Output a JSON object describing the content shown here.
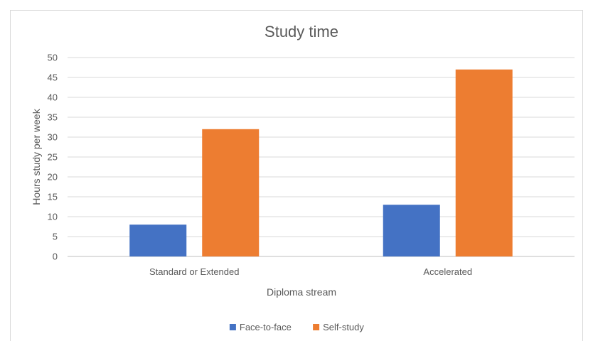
{
  "chart_data": {
    "type": "bar",
    "title": "Study time",
    "xlabel": "Diploma stream",
    "ylabel": "Hours study per week",
    "categories": [
      "Standard or Extended",
      "Accelerated"
    ],
    "series": [
      {
        "name": "Face-to-face",
        "values": [
          8,
          13
        ],
        "color": "#4472c4"
      },
      {
        "name": "Self-study",
        "values": [
          32,
          47
        ],
        "color": "#ed7d31"
      }
    ],
    "ylim": [
      0,
      50
    ],
    "yticks": [
      "0",
      "5",
      "10",
      "15",
      "20",
      "25",
      "30",
      "35",
      "40",
      "45",
      "50"
    ],
    "grid": true,
    "legend": "bottom"
  }
}
